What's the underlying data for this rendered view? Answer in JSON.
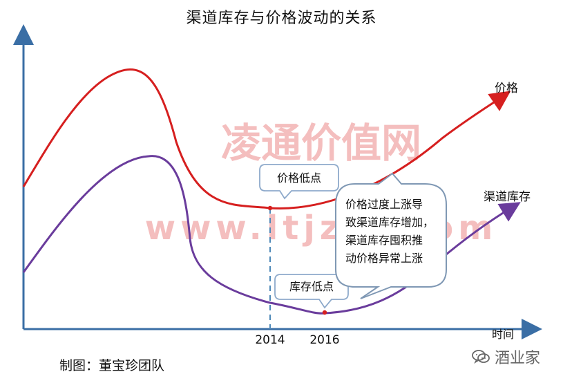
{
  "title": "渠道库存与价格波动的关系",
  "series": {
    "price": {
      "name": "价格",
      "color": "#d61f1f"
    },
    "inventory": {
      "name": "渠道库存",
      "color": "#6a3c9c"
    }
  },
  "axes": {
    "x_label": "时间",
    "color": "#3a6ea5"
  },
  "ticks": {
    "year_2014": "2014",
    "year_2016": "2016"
  },
  "callouts": {
    "price_low": "价格低点",
    "inventory_low": "库存低点",
    "explanation": [
      "价格过度上涨导",
      "致渠道库存增加，",
      "渠道库存囤积推",
      "动价格异常上涨"
    ]
  },
  "watermark": {
    "line1": "凌通价值网",
    "line2": "www.ltjztz.com",
    "color": "#f3b8b8"
  },
  "credit": "制图：董宝珍团队",
  "brand": {
    "name": "酒业家",
    "icon": "wechat-logo-icon"
  }
}
